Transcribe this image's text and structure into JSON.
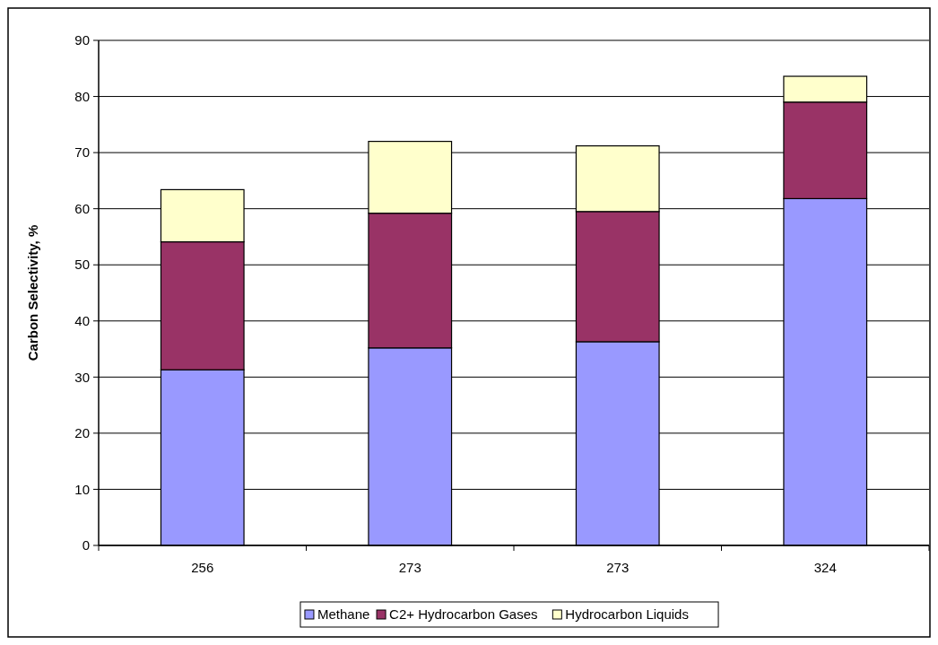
{
  "chart_data": {
    "type": "bar",
    "stacked": true,
    "ylabel": "Carbon Selectivity, %",
    "categories": [
      "256",
      "273",
      "273",
      "324"
    ],
    "series": [
      {
        "name": "Methane",
        "color": "#9999ff",
        "values": [
          31.3,
          35.2,
          36.3,
          61.8
        ]
      },
      {
        "name": "C2+ Hydrocarbon Gases",
        "color": "#993366",
        "values": [
          22.8,
          24.0,
          23.2,
          17.2
        ]
      },
      {
        "name": "Hydrocarbon Liquids",
        "color": "#ffffcc",
        "values": [
          9.3,
          12.8,
          11.7,
          4.6
        ]
      }
    ],
    "ylim": [
      0,
      90
    ],
    "yticks": [
      0,
      10,
      20,
      30,
      40,
      50,
      60,
      70,
      80,
      90
    ],
    "grid": "y",
    "legend": "bottom"
  }
}
